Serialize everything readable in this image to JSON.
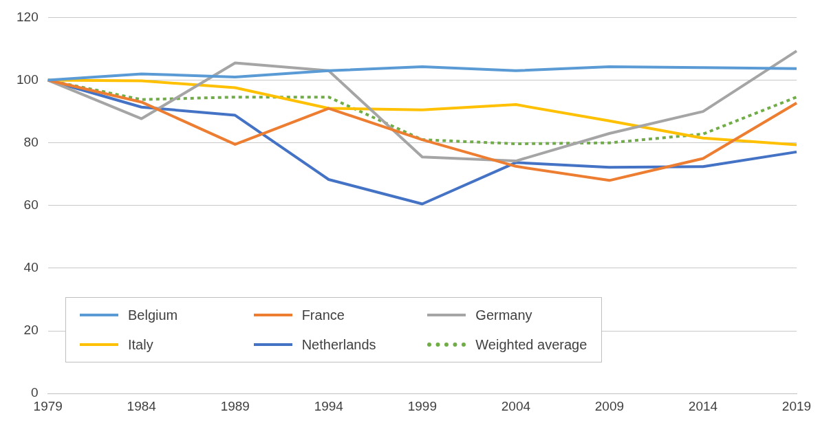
{
  "chart_data": {
    "type": "line",
    "categories": [
      "1979",
      "1984",
      "1989",
      "1994",
      "1999",
      "2004",
      "2009",
      "2014",
      "2019"
    ],
    "series": [
      {
        "name": "Belgium",
        "color": "#5b9bd5",
        "values": [
          100,
          102,
          101,
          103,
          104.3,
          103,
          104.3,
          104,
          103.7
        ]
      },
      {
        "name": "France",
        "color": "#ed7d31",
        "values": [
          100,
          93,
          79.5,
          91,
          81,
          72.5,
          68,
          75,
          92.7
        ]
      },
      {
        "name": "Germany",
        "color": "#a5a5a5",
        "values": [
          100,
          87.7,
          105.5,
          103,
          75.5,
          74.2,
          83,
          90,
          109.3
        ]
      },
      {
        "name": "Italy",
        "color": "#ffc000",
        "values": [
          100,
          99.8,
          97.6,
          91,
          90.5,
          92.2,
          87,
          81.5,
          79.4
        ]
      },
      {
        "name": "Netherlands",
        "color": "#4472c4",
        "values": [
          100,
          91.4,
          88.8,
          68.3,
          60.5,
          73.7,
          72.2,
          72.4,
          77.1
        ]
      },
      {
        "name": "Weighted average",
        "color": "#70ad47",
        "line_style": "dotted",
        "values": [
          100,
          93.8,
          94.6,
          94.6,
          81,
          79.7,
          80,
          82.8,
          94.6
        ]
      }
    ],
    "ylim": [
      0,
      120
    ],
    "yticks": [
      0,
      20,
      40,
      60,
      80,
      100,
      120
    ],
    "grid": "y",
    "legend": "bottom left",
    "marker": "none",
    "line_style": "solid"
  }
}
